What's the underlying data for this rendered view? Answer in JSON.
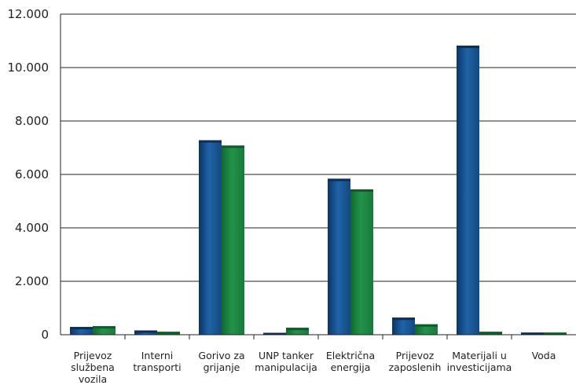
{
  "chart_data": {
    "type": "bar",
    "categories": [
      [
        "Prijevoz",
        "službena",
        "vozila"
      ],
      [
        "Interni",
        "transporti"
      ],
      [
        "Gorivo za",
        "grijanje"
      ],
      [
        "UNP tanker",
        "manipulacija"
      ],
      [
        "Električna",
        "energija"
      ],
      [
        "Prijevoz",
        "zaposlenih"
      ],
      [
        "Materijali u",
        "investicijama"
      ],
      [
        "Voda"
      ]
    ],
    "series": [
      {
        "values": [
          290,
          160,
          7280,
          70,
          5840,
          640,
          10820,
          80
        ],
        "color": "#1f5e9e"
      },
      {
        "values": [
          320,
          110,
          7080,
          260,
          5440,
          390,
          110,
          80
        ],
        "color": "#1e8a44"
      }
    ],
    "ylim": [
      0,
      12000
    ],
    "yticks": [
      0,
      2000,
      4000,
      6000,
      8000,
      10000,
      12000
    ],
    "ytick_labels": [
      "0",
      "2.000",
      "4.000",
      "6.000",
      "8.000",
      "10.000",
      "12.000"
    ],
    "grid": true,
    "legend": "none"
  }
}
